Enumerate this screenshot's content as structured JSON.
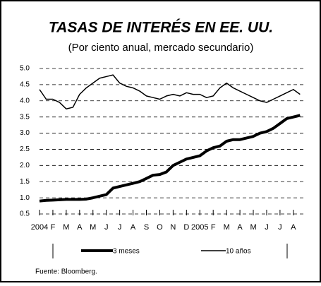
{
  "chart_data": {
    "type": "line",
    "title": "TASAS DE INTERÉS EN EE. UU.",
    "subtitle": "(Por ciento anual, mercado secundario)",
    "source": "Fuente: Bloomberg.",
    "x": [
      0,
      0.5,
      1,
      1.5,
      2,
      2.5,
      3,
      3.5,
      4,
      4.5,
      5,
      5.5,
      6,
      6.5,
      7,
      7.5,
      8,
      8.5,
      9,
      9.5,
      10,
      10.5,
      11,
      11.5,
      12,
      12.5,
      13,
      13.5,
      14,
      14.5,
      15,
      15.5,
      16,
      16.5,
      17,
      17.5,
      18,
      18.5,
      19,
      19.5
    ],
    "series": [
      {
        "name": "3 meses",
        "color": "#000000",
        "width": 4,
        "values": [
          0.9,
          0.92,
          0.93,
          0.94,
          0.95,
          0.95,
          0.95,
          0.96,
          1.0,
          1.05,
          1.1,
          1.3,
          1.35,
          1.4,
          1.45,
          1.5,
          1.6,
          1.7,
          1.72,
          1.8,
          2.0,
          2.1,
          2.2,
          2.25,
          2.3,
          2.45,
          2.55,
          2.6,
          2.75,
          2.8,
          2.8,
          2.85,
          2.9,
          3.0,
          3.05,
          3.15,
          3.3,
          3.45,
          3.5,
          3.55
        ]
      },
      {
        "name": "10 años",
        "color": "#000000",
        "width": 1.5,
        "values": [
          4.35,
          4.05,
          4.05,
          3.95,
          3.75,
          3.8,
          4.2,
          4.4,
          4.55,
          4.7,
          4.75,
          4.8,
          4.55,
          4.45,
          4.4,
          4.3,
          4.15,
          4.1,
          4.05,
          4.15,
          4.2,
          4.15,
          4.25,
          4.2,
          4.2,
          4.1,
          4.15,
          4.4,
          4.55,
          4.4,
          4.3,
          4.2,
          4.1,
          4.0,
          3.95,
          4.05,
          4.15,
          4.25,
          4.35,
          4.2
        ]
      }
    ],
    "xlim": [
      0,
      19.8
    ],
    "xticks": [
      {
        "value": 0,
        "label": "2004"
      },
      {
        "value": 1,
        "label": "F"
      },
      {
        "value": 2,
        "label": "M"
      },
      {
        "value": 3,
        "label": "A"
      },
      {
        "value": 4,
        "label": "M"
      },
      {
        "value": 5,
        "label": "J"
      },
      {
        "value": 6,
        "label": "J"
      },
      {
        "value": 7,
        "label": "A"
      },
      {
        "value": 8,
        "label": "S"
      },
      {
        "value": 9,
        "label": "O"
      },
      {
        "value": 10,
        "label": "N"
      },
      {
        "value": 11,
        "label": "D"
      },
      {
        "value": 12,
        "label": "2005"
      },
      {
        "value": 13,
        "label": "F"
      },
      {
        "value": 14,
        "label": "M"
      },
      {
        "value": 15,
        "label": "A"
      },
      {
        "value": 16,
        "label": "M"
      },
      {
        "value": 17,
        "label": "J"
      },
      {
        "value": 18,
        "label": "J"
      },
      {
        "value": 19,
        "label": "A"
      }
    ],
    "ylim": [
      0.5,
      5.0
    ],
    "yticks": [
      {
        "value": 0.5,
        "label": "0.5"
      },
      {
        "value": 1,
        "label": "1.0"
      },
      {
        "value": 1.5,
        "label": "1.5"
      },
      {
        "value": 2,
        "label": "2.0"
      },
      {
        "value": 2.5,
        "label": "2.5"
      },
      {
        "value": 3,
        "label": "3.0"
      },
      {
        "value": 3.5,
        "label": "3.5"
      },
      {
        "value": 4,
        "label": "4.0"
      },
      {
        "value": 4.5,
        "label": "4.5"
      },
      {
        "value": 5,
        "label": "5.0"
      }
    ],
    "grid": true
  }
}
